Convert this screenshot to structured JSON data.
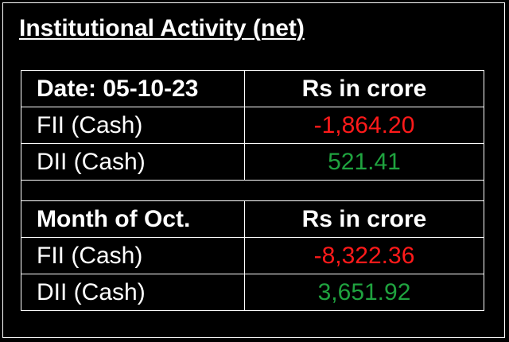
{
  "title": "Institutional Activity (net)",
  "colors": {
    "background": "#000000",
    "text": "#ffffff",
    "negative": "#ff1a1a",
    "positive": "#1fa33f"
  },
  "daily": {
    "header": {
      "label": "Date: 05-10-23",
      "unit": "Rs in crore"
    },
    "rows": [
      {
        "label": "FII (Cash)",
        "value": "-1,864.20",
        "sign": "negative"
      },
      {
        "label": "DII (Cash)",
        "value": "521.41",
        "sign": "positive"
      }
    ]
  },
  "monthly": {
    "header": {
      "label": "Month of Oct.",
      "unit": "Rs in crore"
    },
    "rows": [
      {
        "label": "FII (Cash)",
        "value": "-8,322.36",
        "sign": "negative"
      },
      {
        "label": "DII (Cash)",
        "value": "3,651.92",
        "sign": "positive"
      }
    ]
  }
}
